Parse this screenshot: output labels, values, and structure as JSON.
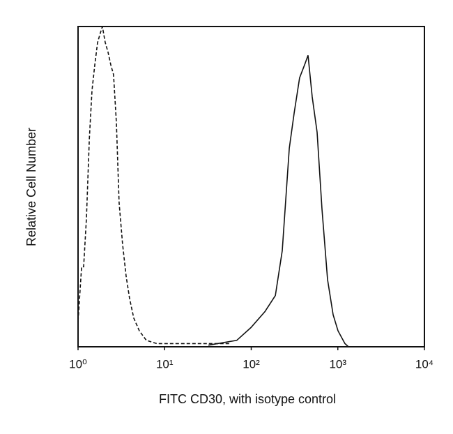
{
  "chart_data": {
    "type": "line",
    "x_label": "FITC CD30, with isotype control",
    "y_label": "Relative Cell Number",
    "x_log": true,
    "xlim": [
      1,
      10000
    ],
    "xticks": [
      {
        "value": 1,
        "label": "10⁰"
      },
      {
        "value": 10,
        "label": "10¹"
      },
      {
        "value": 100,
        "label": "10²"
      },
      {
        "value": 1000,
        "label": "10³"
      },
      {
        "value": 10000,
        "label": "10⁴"
      }
    ],
    "ylim": [
      0,
      100
    ],
    "series": [
      {
        "color": "#111111",
        "line_style": "dashed",
        "x": [
          1,
          1.1,
          1.16,
          1.25,
          1.35,
          1.45,
          1.56,
          1.68,
          1.81,
          1.91,
          2.06,
          2.22,
          2.39,
          2.57,
          2.77,
          2.98,
          3.27,
          3.59,
          3.94,
          4.4,
          5.1,
          6.15,
          8.1,
          12.9,
          32.5,
          56
        ],
        "values": [
          8,
          25,
          25,
          40,
          65,
          80,
          88,
          95,
          98,
          100,
          95,
          92,
          88,
          85,
          70,
          45,
          32,
          22,
          15,
          9,
          5,
          2,
          1,
          1,
          1,
          1
        ]
      },
      {
        "color": "#111111",
        "line_style": "solid",
        "x": [
          32,
          68,
          99,
          144,
          190,
          228,
          275,
          313,
          362,
          413,
          453,
          506,
          576,
          656,
          761,
          883,
          1005,
          1208,
          1327
        ],
        "values": [
          0.5,
          2,
          6,
          11,
          16,
          30,
          62,
          73,
          84,
          88,
          91,
          78,
          67,
          43,
          21,
          10,
          5,
          1,
          0
        ]
      }
    ]
  }
}
